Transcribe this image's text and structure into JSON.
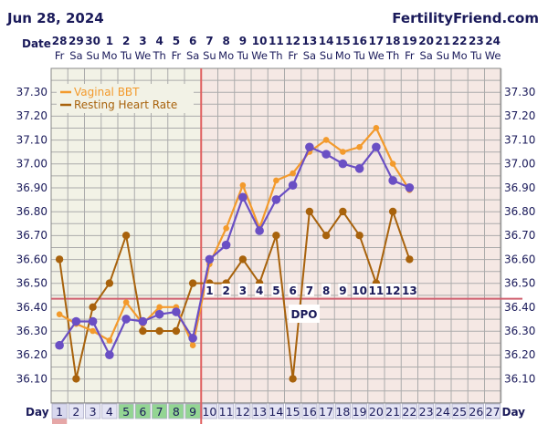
{
  "header": {
    "date": "Jun 28, 2024",
    "brand": "FertilityFriend.com",
    "date_row_label": "Date",
    "day_row_label": "Day",
    "dpo_label": "DPO"
  },
  "colors": {
    "temp_line": "#f39a2c",
    "temp_dot": "#6a4fc4",
    "hr_line": "#a8620c",
    "hr_dot": "#a8620c",
    "ovulation_line": "#e06060",
    "coverline": "#d06070",
    "grid": "#ababab",
    "bg_pre": "#f2f2e6",
    "bg_post": "#f5e8e4",
    "text": "#1a1a5a"
  },
  "chart_data": {
    "type": "line",
    "title": "",
    "ylabel": "",
    "ylim": [
      36.05,
      37.35
    ],
    "y_ticks": [
      "37.30",
      "37.20",
      "37.10",
      "37.00",
      "36.90",
      "36.80",
      "36.70",
      "36.60",
      "36.50",
      "36.40",
      "36.30",
      "36.20",
      "36.10"
    ],
    "grid": true,
    "legend_position": "top-left",
    "dates": [
      "28",
      "29",
      "30",
      "1",
      "2",
      "3",
      "4",
      "5",
      "6",
      "7",
      "8",
      "9",
      "10",
      "11",
      "12",
      "13",
      "14",
      "15",
      "16",
      "17",
      "18",
      "19",
      "20",
      "21",
      "22",
      "23",
      "24"
    ],
    "weekdays": [
      "Fr",
      "Sa",
      "Su",
      "Mo",
      "Tu",
      "We",
      "Th",
      "Fr",
      "Sa",
      "Su",
      "Mo",
      "Tu",
      "We",
      "Th",
      "Fr",
      "Sa",
      "Su",
      "Mo",
      "Tu",
      "We",
      "Th",
      "Fr",
      "Sa",
      "Su",
      "Mo",
      "Tu",
      "We"
    ],
    "cycle_days": [
      "1",
      "2",
      "3",
      "4",
      "5",
      "6",
      "7",
      "8",
      "9",
      "10",
      "11",
      "12",
      "13",
      "14",
      "15",
      "16",
      "17",
      "18",
      "19",
      "20",
      "21",
      "22",
      "23",
      "24",
      "25",
      "26",
      "27"
    ],
    "ovulation_day": 9,
    "coverline": 36.435,
    "dpo_labels": [
      "1",
      "2",
      "3",
      "4",
      "5",
      "6",
      "7",
      "8",
      "9",
      "10",
      "11",
      "12",
      "13"
    ],
    "series": [
      {
        "name": "Vaginal BBT",
        "role": "temperature",
        "values": [
          36.37,
          36.33,
          36.3,
          36.26,
          36.42,
          36.33,
          36.4,
          36.4,
          36.24,
          36.58,
          36.73,
          36.91,
          36.73,
          36.93,
          36.96,
          37.05,
          37.1,
          37.05,
          37.07,
          37.15,
          37.0,
          36.89,
          null,
          null,
          null,
          null,
          null
        ],
        "fitted_dots": [
          36.24,
          36.34,
          36.34,
          36.2,
          36.35,
          36.34,
          36.37,
          36.38,
          36.27,
          36.6,
          36.66,
          36.86,
          36.72,
          36.85,
          36.91,
          37.07,
          37.04,
          37.0,
          36.98,
          37.07,
          36.93,
          36.9,
          null,
          null,
          null,
          null,
          null
        ]
      },
      {
        "name": "Resting Heart Rate",
        "role": "heart_rate",
        "values": [
          36.6,
          36.1,
          36.4,
          36.5,
          36.7,
          36.3,
          36.3,
          36.3,
          36.5,
          36.5,
          36.5,
          36.6,
          36.5,
          36.7,
          36.1,
          36.8,
          36.7,
          36.8,
          36.7,
          36.5,
          36.8,
          36.6,
          null,
          null,
          null,
          null,
          null
        ]
      }
    ]
  }
}
